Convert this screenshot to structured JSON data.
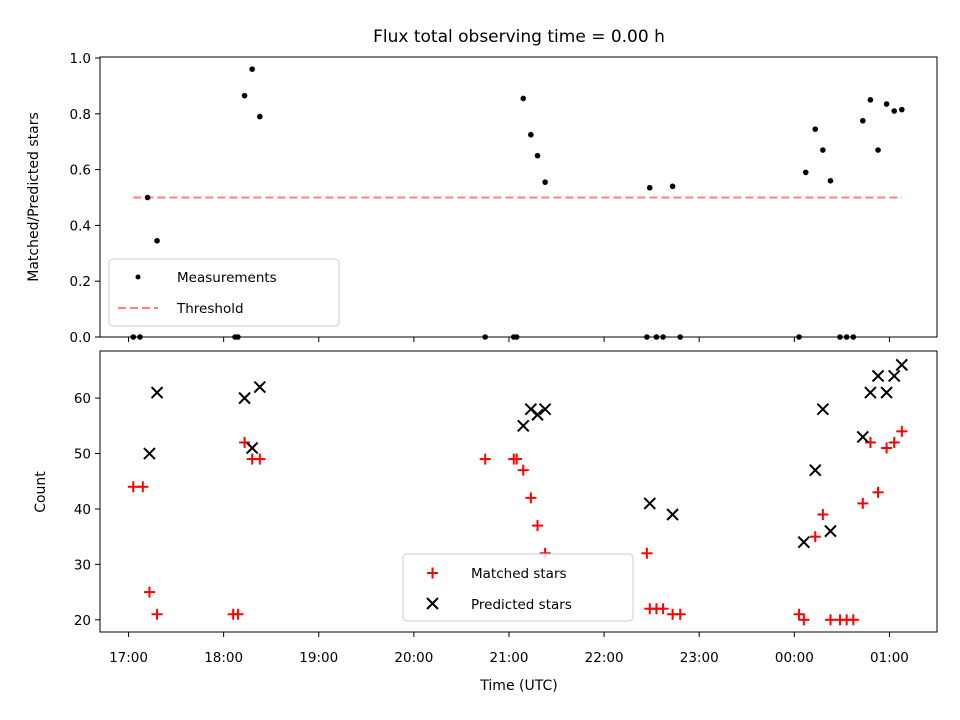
{
  "chart_data": [
    {
      "type": "scatter",
      "title": "Flux total observing time = 0.00 h",
      "xlabel": "",
      "ylabel": "Matched/Predicted stars",
      "ylim": [
        0,
        1.0
      ],
      "yticks": [
        "0.0",
        "0.2",
        "0.4",
        "0.6",
        "0.8",
        "1.0"
      ],
      "x_unit": "hours since 17:00 UTC",
      "legend": {
        "placement": "lower-left",
        "entries": [
          "Measurements",
          "Threshold"
        ]
      },
      "series": [
        {
          "name": "Measurements",
          "color": "#000000",
          "points": [
            [
              0.05,
              0.0
            ],
            [
              0.12,
              0.0
            ],
            [
              0.2,
              0.5
            ],
            [
              0.3,
              0.345
            ],
            [
              1.12,
              0.0
            ],
            [
              1.15,
              0.0
            ],
            [
              1.22,
              0.865
            ],
            [
              1.3,
              0.96
            ],
            [
              1.38,
              0.79
            ],
            [
              3.75,
              0.0
            ],
            [
              4.05,
              0.0
            ],
            [
              4.08,
              0.0
            ],
            [
              4.15,
              0.855
            ],
            [
              4.23,
              0.725
            ],
            [
              4.3,
              0.65
            ],
            [
              4.38,
              0.555
            ],
            [
              5.45,
              0.0
            ],
            [
              5.55,
              0.0
            ],
            [
              5.62,
              0.0
            ],
            [
              5.48,
              0.535
            ],
            [
              5.72,
              0.54
            ],
            [
              5.8,
              0.0
            ],
            [
              7.05,
              0.0
            ],
            [
              7.12,
              0.59
            ],
            [
              7.22,
              0.745
            ],
            [
              7.3,
              0.67
            ],
            [
              7.38,
              0.56
            ],
            [
              7.48,
              0.0
            ],
            [
              7.55,
              0.0
            ],
            [
              7.62,
              0.0
            ],
            [
              7.72,
              0.775
            ],
            [
              7.8,
              0.85
            ],
            [
              7.88,
              0.67
            ],
            [
              7.97,
              0.835
            ],
            [
              8.05,
              0.81
            ],
            [
              8.13,
              0.815
            ]
          ]
        },
        {
          "name": "Threshold",
          "color": "#ff7f7f",
          "line": [
            [
              0.05,
              0.5
            ],
            [
              8.13,
              0.5
            ]
          ]
        }
      ]
    },
    {
      "type": "scatter",
      "title": "",
      "xlabel": "Time (UTC)",
      "ylabel": "Count",
      "ylim": [
        17.8,
        68.5
      ],
      "yticks": [
        "20",
        "30",
        "40",
        "50",
        "60"
      ],
      "xlim": [
        -0.3,
        8.5
      ],
      "xticks": [
        "17:00",
        "18:00",
        "19:00",
        "20:00",
        "21:00",
        "22:00",
        "23:00",
        "00:00",
        "01:00"
      ],
      "legend": {
        "placement": "bottom-center",
        "entries": [
          "Matched stars",
          "Predicted stars"
        ]
      },
      "series": [
        {
          "name": "Matched stars",
          "color": "#ff0000",
          "marker": "plus",
          "points": [
            [
              0.05,
              44
            ],
            [
              0.15,
              44
            ],
            [
              0.22,
              25
            ],
            [
              0.3,
              21
            ],
            [
              1.1,
              21
            ],
            [
              1.15,
              21
            ],
            [
              1.22,
              52
            ],
            [
              1.3,
              49
            ],
            [
              1.38,
              49
            ],
            [
              3.75,
              49
            ],
            [
              4.05,
              49
            ],
            [
              4.08,
              49
            ],
            [
              4.15,
              47
            ],
            [
              4.23,
              42
            ],
            [
              4.3,
              37
            ],
            [
              4.38,
              32
            ],
            [
              5.45,
              32
            ],
            [
              5.48,
              22
            ],
            [
              5.55,
              22
            ],
            [
              5.62,
              22
            ],
            [
              5.72,
              21
            ],
            [
              5.8,
              21
            ],
            [
              7.05,
              21
            ],
            [
              7.1,
              20
            ],
            [
              7.22,
              35
            ],
            [
              7.3,
              39
            ],
            [
              7.38,
              20
            ],
            [
              7.48,
              20
            ],
            [
              7.55,
              20
            ],
            [
              7.62,
              20
            ],
            [
              7.72,
              41
            ],
            [
              7.8,
              52
            ],
            [
              7.88,
              43
            ],
            [
              7.97,
              51
            ],
            [
              8.05,
              52
            ],
            [
              8.13,
              54
            ]
          ]
        },
        {
          "name": "Predicted stars",
          "color": "#000000",
          "marker": "x",
          "points": [
            [
              0.22,
              50
            ],
            [
              0.3,
              61
            ],
            [
              1.22,
              60
            ],
            [
              1.3,
              51
            ],
            [
              1.38,
              62
            ],
            [
              4.15,
              55
            ],
            [
              4.23,
              58
            ],
            [
              4.3,
              57
            ],
            [
              4.38,
              58
            ],
            [
              5.48,
              41
            ],
            [
              5.72,
              39
            ],
            [
              7.1,
              34
            ],
            [
              7.22,
              47
            ],
            [
              7.3,
              58
            ],
            [
              7.38,
              36
            ],
            [
              7.72,
              53
            ],
            [
              7.8,
              61
            ],
            [
              7.88,
              64
            ],
            [
              7.97,
              61
            ],
            [
              8.05,
              64
            ],
            [
              8.13,
              66
            ]
          ]
        }
      ]
    }
  ]
}
